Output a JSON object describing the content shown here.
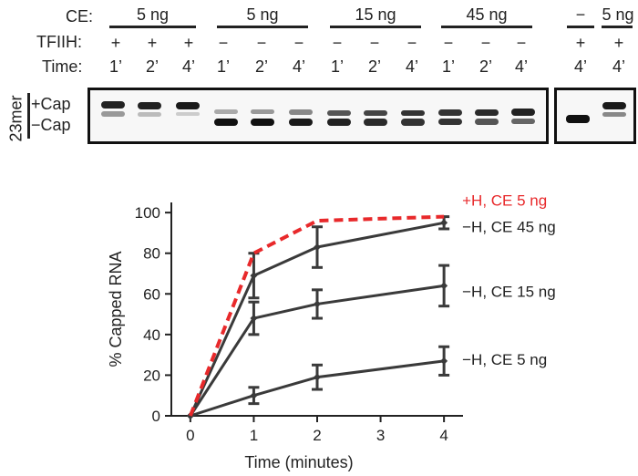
{
  "figure": {
    "row_labels": {
      "ce": "CE:",
      "tfiih": "TFIIH:",
      "time": "Time:"
    },
    "groups": [
      {
        "ce": "5 ng",
        "tfiih": [
          "+",
          "+",
          "+"
        ],
        "time": [
          "1’",
          "2’",
          "4’"
        ]
      },
      {
        "ce": "5 ng",
        "tfiih": [
          "−",
          "−",
          "−"
        ],
        "time": [
          "1’",
          "2’",
          "4’"
        ]
      },
      {
        "ce": "15 ng",
        "tfiih": [
          "−",
          "−",
          "−"
        ],
        "time": [
          "1’",
          "2’",
          "4’"
        ]
      },
      {
        "ce": "45 ng",
        "tfiih": [
          "−",
          "−",
          "−"
        ],
        "time": [
          "1’",
          "2’",
          "4’"
        ]
      }
    ],
    "controls": [
      {
        "ce": "−",
        "tfiih": "+",
        "time": "4’"
      },
      {
        "ce": "5 ng",
        "tfiih": "+",
        "time": "4’"
      }
    ],
    "gel": {
      "side_label": "23mer",
      "plus_cap": "+Cap",
      "minus_cap": "−Cap"
    }
  },
  "chart_data": {
    "type": "line",
    "title": "",
    "xlabel": "Time (minutes)",
    "ylabel": "% Capped RNA",
    "xlim": [
      -0.3,
      4.3
    ],
    "ylim": [
      0,
      105
    ],
    "xticks": [
      0,
      1,
      2,
      3,
      4
    ],
    "yticks": [
      0,
      20,
      40,
      60,
      80,
      100
    ],
    "grid": false,
    "series": [
      {
        "name": "+H, CE 5 ng",
        "color": "#e8292b",
        "dashed": true,
        "marker": "none",
        "x": [
          0,
          1,
          2,
          4
        ],
        "y": [
          0,
          80,
          96,
          98
        ],
        "err": [
          0,
          0,
          0,
          0
        ]
      },
      {
        "name": "−H, CE 45 ng",
        "color": "#3a3a3a",
        "dashed": false,
        "marker": "diamond",
        "x": [
          0,
          1,
          2,
          4
        ],
        "y": [
          0,
          69,
          83,
          95
        ],
        "err": [
          0,
          11,
          10,
          3
        ]
      },
      {
        "name": "−H, CE 15 ng",
        "color": "#3a3a3a",
        "dashed": false,
        "marker": "diamond",
        "x": [
          0,
          1,
          2,
          4
        ],
        "y": [
          0,
          48,
          55,
          64
        ],
        "err": [
          0,
          8,
          7,
          10
        ]
      },
      {
        "name": "−H, CE 5 ng",
        "color": "#3a3a3a",
        "dashed": false,
        "marker": "diamond",
        "x": [
          0,
          1,
          2,
          4
        ],
        "y": [
          0,
          10,
          19,
          27
        ],
        "err": [
          0,
          4,
          6,
          7
        ]
      }
    ]
  }
}
